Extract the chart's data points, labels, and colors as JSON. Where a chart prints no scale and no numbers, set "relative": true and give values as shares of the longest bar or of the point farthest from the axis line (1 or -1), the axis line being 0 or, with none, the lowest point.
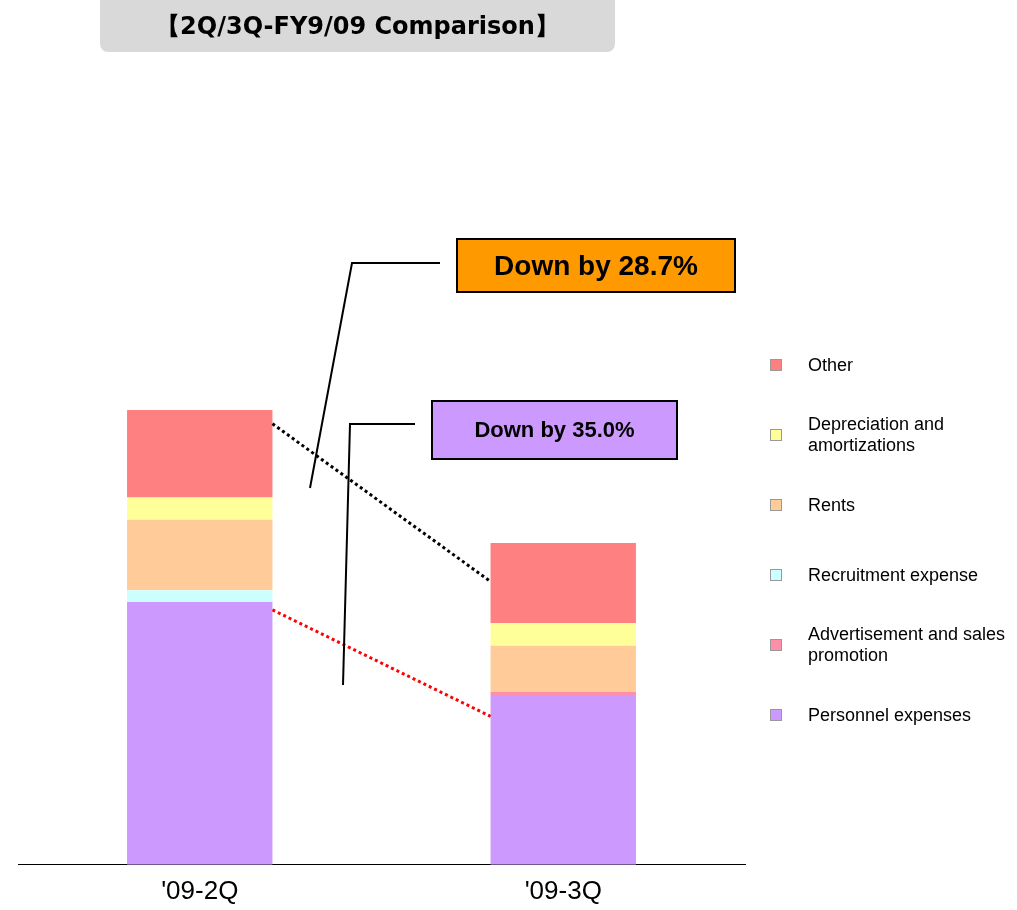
{
  "chart_data": {
    "type": "bar",
    "title": "【2Q/3Q-FY9/09 Comparison】",
    "categories": [
      "'09-2Q",
      "'09-3Q"
    ],
    "stacked": true,
    "relative": true,
    "legend": "right",
    "grid": false,
    "series": [
      {
        "name": "Personnel expenses",
        "color": "#cc99ff",
        "values": [
          0.578,
          0.371
        ]
      },
      {
        "name": "Advertisement and sales promotion",
        "color": "#ff8fa8",
        "values": [
          0,
          0.009
        ]
      },
      {
        "name": "Recruitment expense",
        "color": "#ccffff",
        "values": [
          0.026,
          0
        ]
      },
      {
        "name": "Rents",
        "color": "#ffcc99",
        "values": [
          0.155,
          0.102
        ]
      },
      {
        "name": "Depreciation and amortizations",
        "color": "#ffff99",
        "values": [
          0.049,
          0.049
        ]
      },
      {
        "name": "Other",
        "color": "#ff8080",
        "values": [
          0.192,
          0.177
        ]
      }
    ],
    "annotations": [
      "Down by 28.7%",
      "Down by 35.0%"
    ]
  }
}
